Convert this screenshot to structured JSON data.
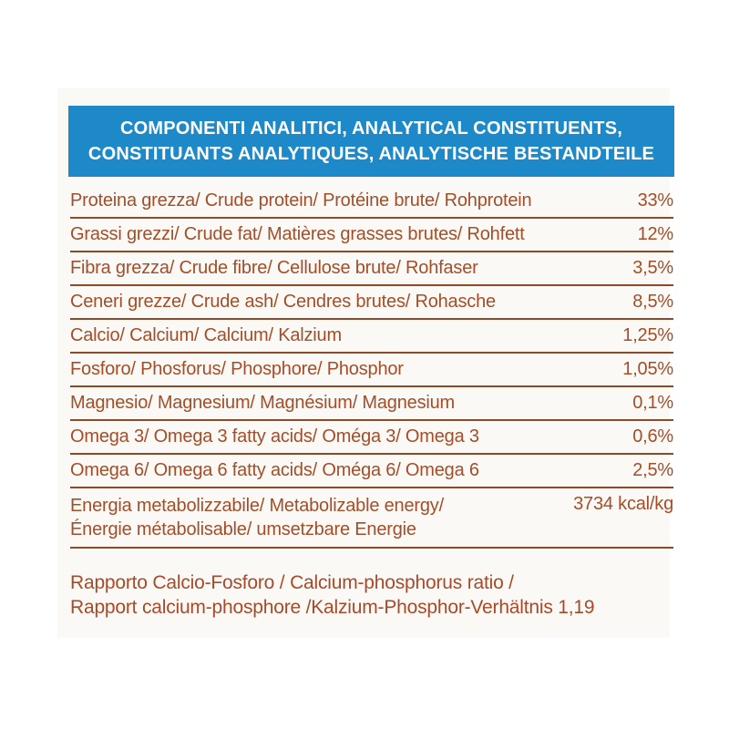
{
  "header": {
    "line1": "COMPONENTI ANALITICI, ANALYTICAL CONSTITUENTS,",
    "line2": "CONSTITUANTS ANALYTIQUES, ANALYTISCHE BESTANDTEILE"
  },
  "table": {
    "rows": [
      {
        "label": "Proteina grezza/ Crude protein/ Protéine brute/ Rohprotein",
        "value": "33%"
      },
      {
        "label": "Grassi grezzi/ Crude fat/ Matières grasses brutes/ Rohfett",
        "value": "12%"
      },
      {
        "label": "Fibra grezza/ Crude fibre/ Cellulose brute/ Rohfaser",
        "value": "3,5%"
      },
      {
        "label": "Ceneri grezze/ Crude ash/ Cendres brutes/ Rohasche",
        "value": "8,5%"
      },
      {
        "label": "Calcio/ Calcium/ Calcium/ Kalzium",
        "value": "1,25%"
      },
      {
        "label": "Fosforo/ Phosforus/ Phosphore/ Phosphor",
        "value": "1,05%"
      },
      {
        "label": "Magnesio/ Magnesium/ Magnésium/ Magnesium",
        "value": "0,1%"
      },
      {
        "label": "Omega 3/ Omega 3 fatty acids/ Oméga 3/ Omega 3",
        "value": "0,6%"
      },
      {
        "label": "Omega 6/ Omega 6 fatty acids/ Oméga 6/ Omega 6",
        "value": "2,5%"
      },
      {
        "label": "Energia metabolizzabile/ Metabolizable energy/\nÉnergie métabolisable/ umsetzbare Energie",
        "value": "3734 kcal/kg"
      }
    ]
  },
  "ratio": {
    "text": "Rapporto Calcio-Fosforo / Calcium-phosphorus ratio /\nRapport calcium-phosphore /Kalzium-Phosphor-Verhältnis 1,19"
  },
  "colors": {
    "header_background": "#1d89c8",
    "header_text": "#ffffff",
    "body_text": "#a34e28",
    "rule": "#8d4a26",
    "panel_background": "#fbf9f6"
  }
}
